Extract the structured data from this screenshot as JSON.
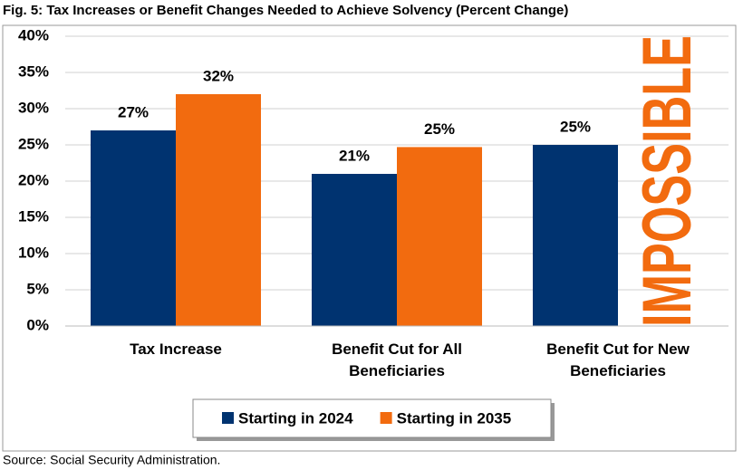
{
  "chart_data": {
    "type": "bar",
    "title": "Fig. 5: Tax Increases or Benefit Changes Needed to Achieve Solvency (Percent Change)",
    "categories": [
      "Tax Increase",
      "Benefit Cut for All Beneficiaries",
      "Benefit Cut for New Beneficiaries"
    ],
    "series": [
      {
        "name": "Starting in 2024",
        "color": "#003370",
        "values": [
          27,
          21,
          25
        ],
        "value_labels": [
          "27%",
          "21%",
          "25%"
        ]
      },
      {
        "name": "Starting in 2035",
        "color": "#f26b0f",
        "values": [
          32,
          24.7,
          null
        ],
        "value_labels": [
          "32%",
          "25%",
          null
        ]
      }
    ],
    "ylim": [
      0,
      40
    ],
    "yticks": [
      {
        "value": 0,
        "label": "0%"
      },
      {
        "value": 5,
        "label": "5%"
      },
      {
        "value": 10,
        "label": "10%"
      },
      {
        "value": 15,
        "label": "15%"
      },
      {
        "value": 20,
        "label": "20%"
      },
      {
        "value": 25,
        "label": "25%"
      },
      {
        "value": 30,
        "label": "30%"
      },
      {
        "value": 35,
        "label": "35%"
      },
      {
        "value": 40,
        "label": "40%"
      }
    ],
    "grid": true,
    "annotation": "IMPOSSIBLE",
    "source": "Source: Social Security Administration."
  }
}
